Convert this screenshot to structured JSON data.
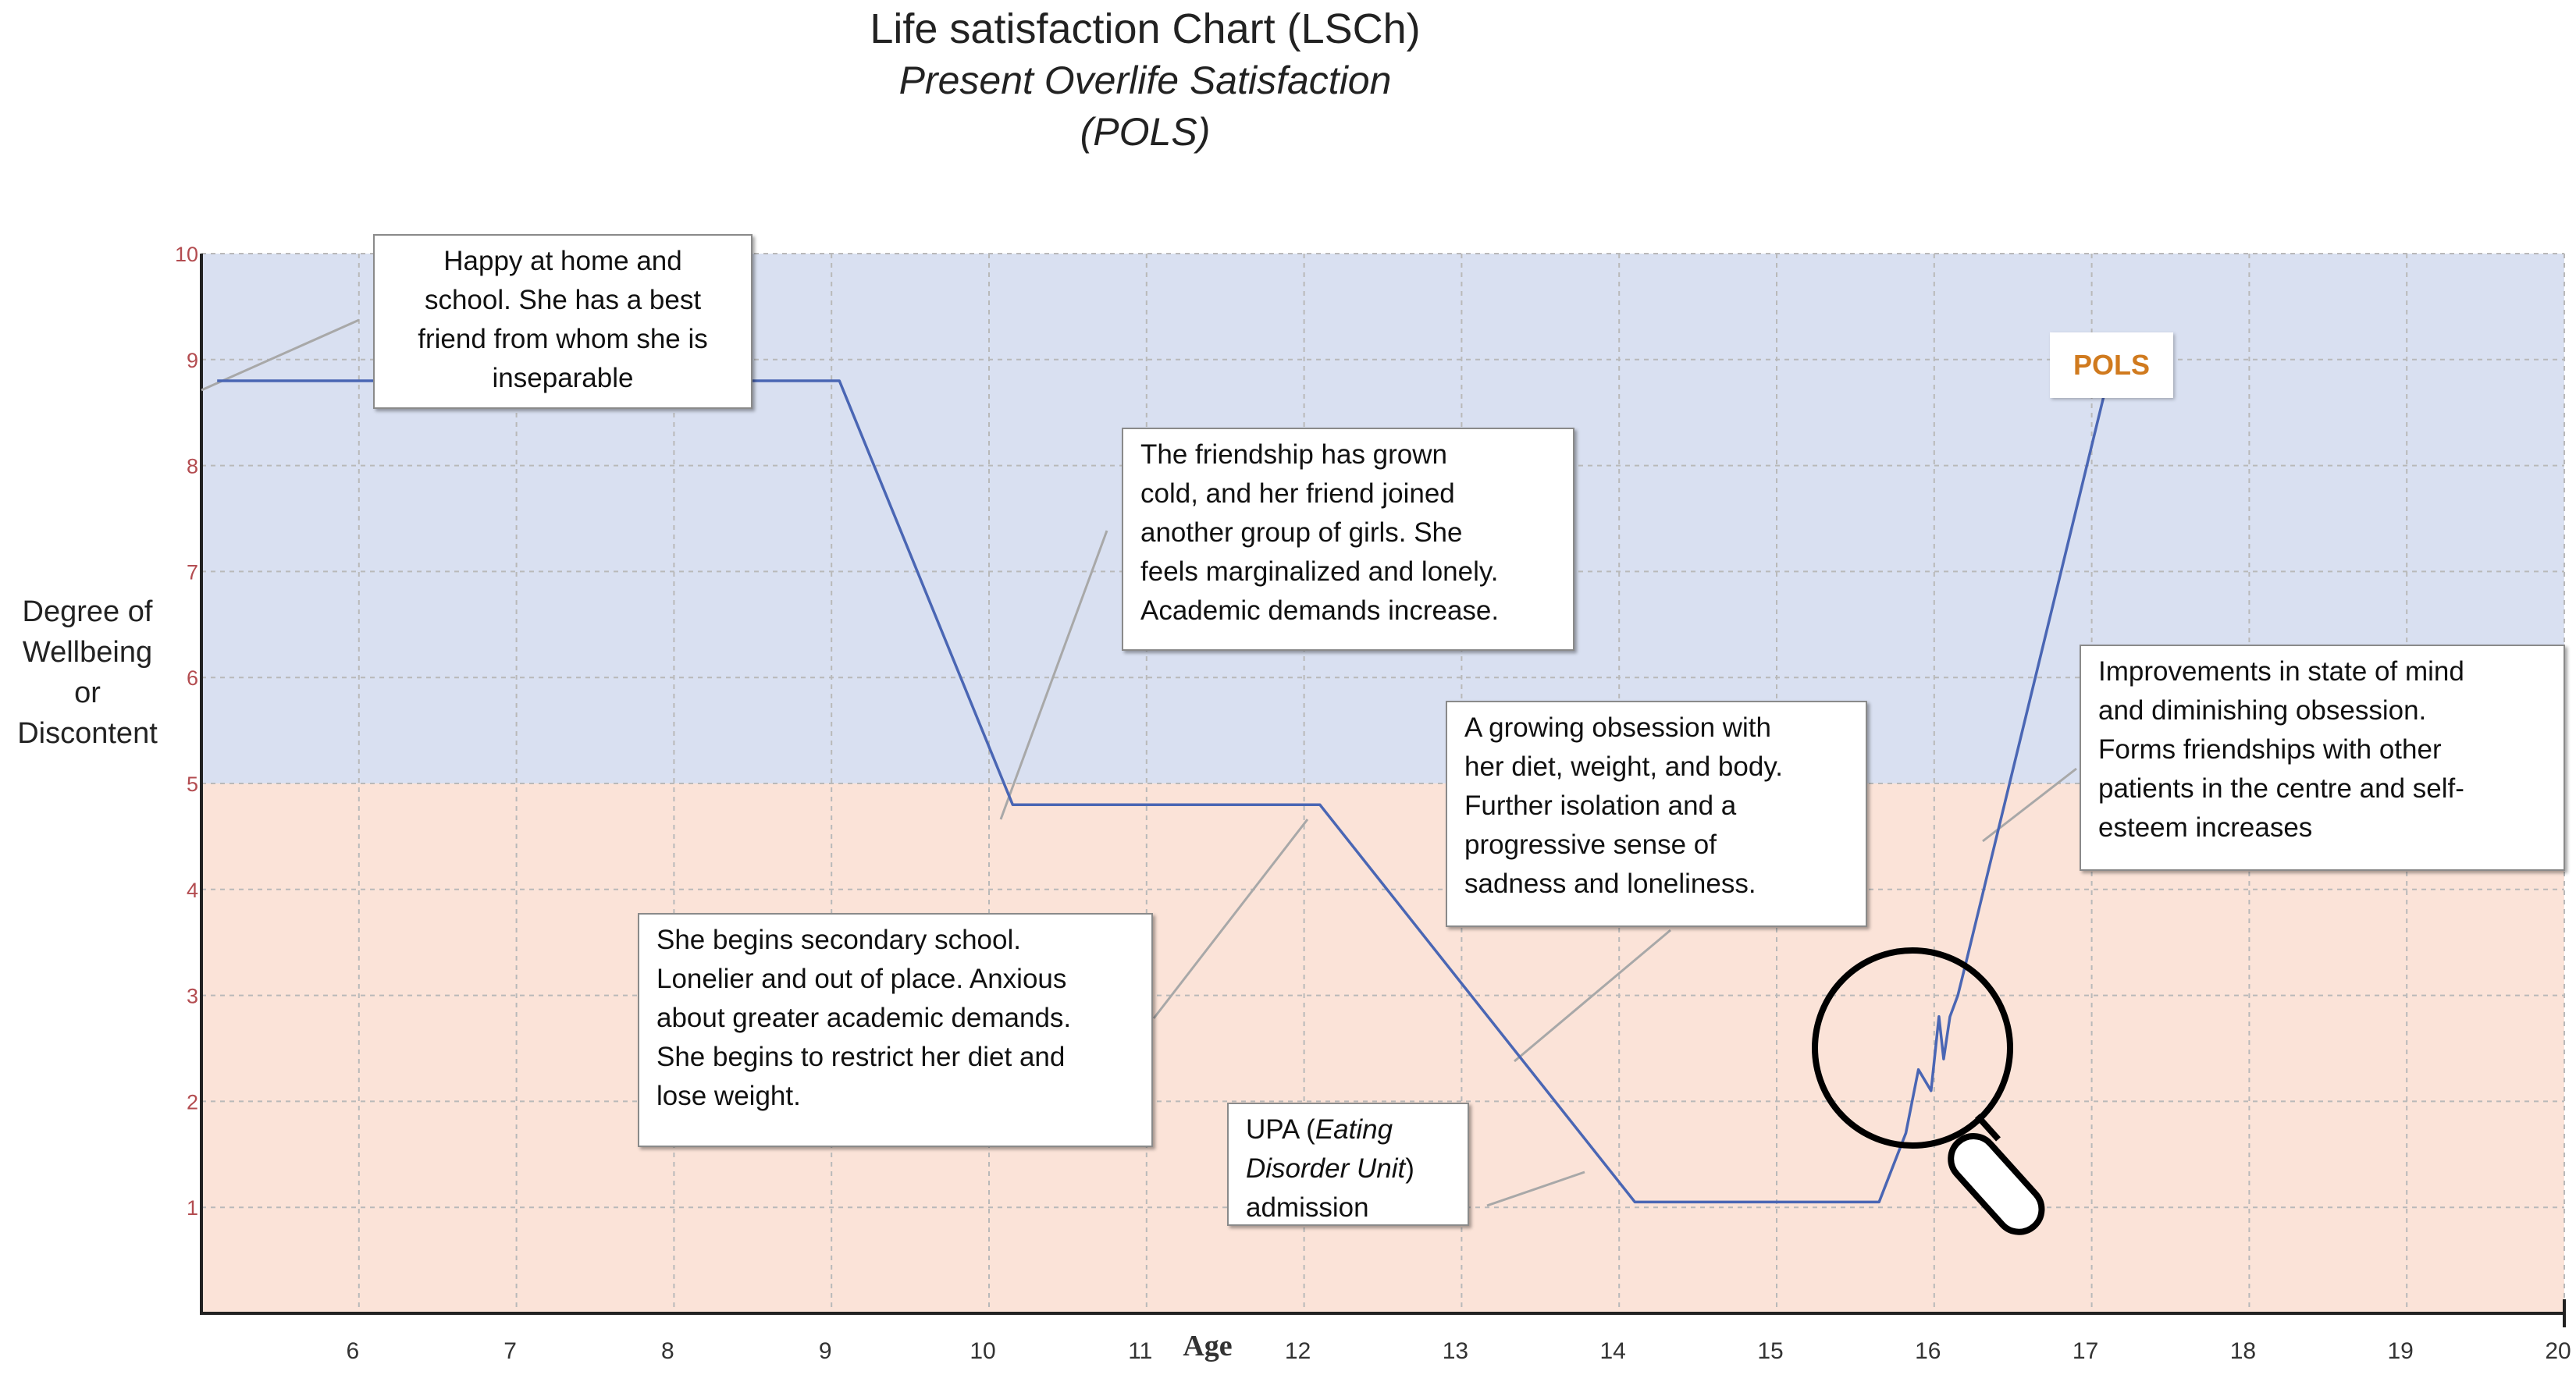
{
  "chart_data": {
    "type": "line",
    "title": "Life satisfaction Chart (LSCh)",
    "subtitle_lines": [
      "Present Overlife Satisfaction",
      "(POLS)"
    ],
    "ylabel_lines": [
      "Degree of",
      "Wellbeing",
      "or",
      "Discontent"
    ],
    "xlabel": "Age",
    "xlim": [
      5,
      20
    ],
    "ylim": [
      0,
      10
    ],
    "x_ticks": [
      "6",
      "7",
      "8",
      "9",
      "10",
      "11",
      "12",
      "13",
      "14",
      "15",
      "16",
      "17",
      "18",
      "19",
      "20"
    ],
    "y_ticks": [
      "1",
      "2",
      "3",
      "4",
      "5",
      "6",
      "7",
      "8",
      "9",
      "10"
    ],
    "grid": true,
    "bands": [
      {
        "from": 5,
        "to": 10,
        "color": "#d9e0f1"
      },
      {
        "from": 0,
        "to": 5,
        "color": "#fbe3d8"
      }
    ],
    "series": [
      {
        "name": "POLS",
        "color": "#4a66b4",
        "x": [
          5.1,
          9.05,
          10.15,
          12.1,
          14.1,
          15.65,
          15.82,
          15.9,
          15.98,
          16.03,
          16.06,
          16.1,
          16.15,
          16.2,
          17.1
        ],
        "y": [
          8.8,
          8.8,
          4.8,
          4.8,
          1.05,
          1.05,
          1.7,
          2.3,
          2.1,
          2.8,
          2.4,
          2.8,
          3.0,
          3.3,
          8.8
        ]
      }
    ],
    "annotations": [
      "Happy at home and school. She has a best friend from whom she is inseparable",
      "The friendship has grown cold, and her friend joined another group of girls. She feels marginalized and lonely. Academic demands increase.",
      "A growing obsession with her diet, weight, and body. Further isolation and a progressive sense of sadness and loneliness.",
      "Improvements in state of mind and diminishing obsession. Forms friendships with other patients in the centre and self-esteem increases",
      "She begins secondary school. Lonelier and out of place. Anxious about greater academic demands. She begins to restrict her diet and lose weight.",
      "UPA (Eating Disorder Unit) admission"
    ]
  },
  "callouts": {
    "c1": [
      "Happy at home and",
      "school. She has a best",
      "friend from whom she is",
      "inseparable"
    ],
    "c2": [
      "The friendship has grown",
      "cold, and her friend joined",
      "another group of girls. She",
      "feels marginalized and lonely.",
      "Academic demands increase."
    ],
    "c3": [
      "A growing obsession with",
      "her diet, weight, and body.",
      "Further isolation and a",
      "progressive sense of",
      "sadness and loneliness."
    ],
    "c4": [
      "Improvements in state of mind",
      "and diminishing obsession.",
      "Forms friendships with other",
      "patients in the centre and self-",
      "esteem increases"
    ],
    "c5": [
      "She begins secondary school.",
      "Lonelier and out of place. Anxious",
      "about greater academic demands.",
      "She begins to restrict her diet and",
      "lose weight."
    ],
    "c6": {
      "line1": "UPA (",
      "italic": "Eating Disorder Unit",
      "line3_pre": ")",
      "line3": "admission"
    }
  },
  "series_label": "POLS"
}
